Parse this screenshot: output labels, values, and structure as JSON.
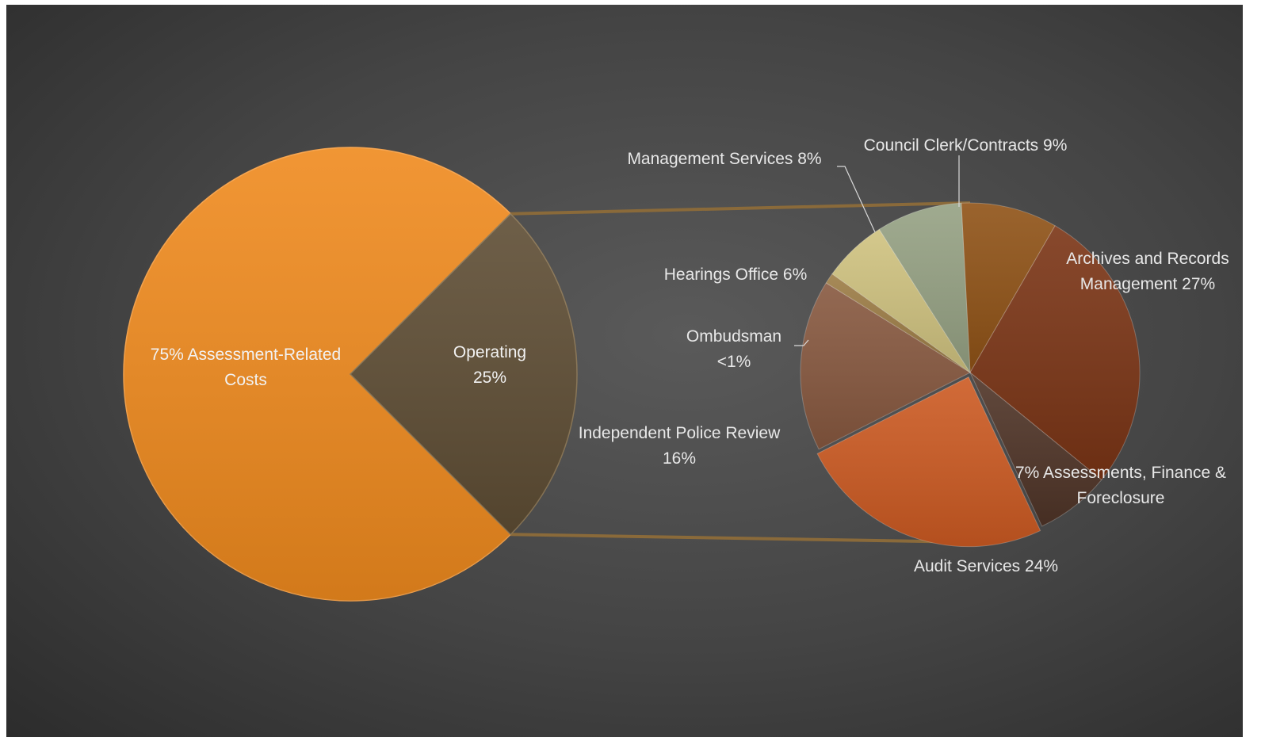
{
  "chart_data": {
    "type": "pie-of-pie",
    "main_pie": {
      "slices": [
        {
          "label": "75% Assessment-Related Costs",
          "label_lines": [
            "75% Assessment-Related",
            "Costs"
          ],
          "value": 75,
          "color": "#ef8a1e"
        },
        {
          "label": "Operating 25%",
          "label_lines": [
            "Operating",
            "25%"
          ],
          "value": 25,
          "color": "#5e4d34"
        }
      ]
    },
    "secondary_pie": {
      "breakdown_of": "Operating",
      "slices": [
        {
          "label": "Council Clerk/Contracts 9%",
          "label_lines": [
            "Council Clerk/Contracts 9%"
          ],
          "value": 9,
          "color": "#8f5216"
        },
        {
          "label": "Archives and Records Management 27%",
          "label_lines": [
            "Archives and Records",
            "Management 27%"
          ],
          "value": 27,
          "color": "#7a3415"
        },
        {
          "label": "7% Assessments, Finance & Foreclosure",
          "label_lines": [
            "7% Assessments, Finance &",
            "Foreclosure"
          ],
          "value": 7,
          "color": "#4f3427"
        },
        {
          "label": "Audit Services 24%",
          "label_lines": [
            "Audit Services 24%"
          ],
          "value": 24,
          "color": "#cc5a22"
        },
        {
          "label": "Independent Police Review 16%",
          "label_lines": [
            "Independent Police Review",
            "16%"
          ],
          "value": 16,
          "color": "#87583f"
        },
        {
          "label": "Ombudsman <1%",
          "label_lines": [
            "Ombudsman",
            "<1%"
          ],
          "value": 1,
          "color": "#9c7c45"
        },
        {
          "label": "Hearings Office 6%",
          "label_lines": [
            "Hearings Office 6%"
          ],
          "value": 6,
          "color": "#cfc27f"
        },
        {
          "label": "Management Services 8%",
          "label_lines": [
            "Management Services 8%"
          ],
          "value": 8,
          "color": "#95a183"
        }
      ]
    }
  },
  "colors": {
    "connector": "#8a6a3a",
    "leader_line": "#d9d9d9",
    "label_text": "#e8e8e8"
  }
}
